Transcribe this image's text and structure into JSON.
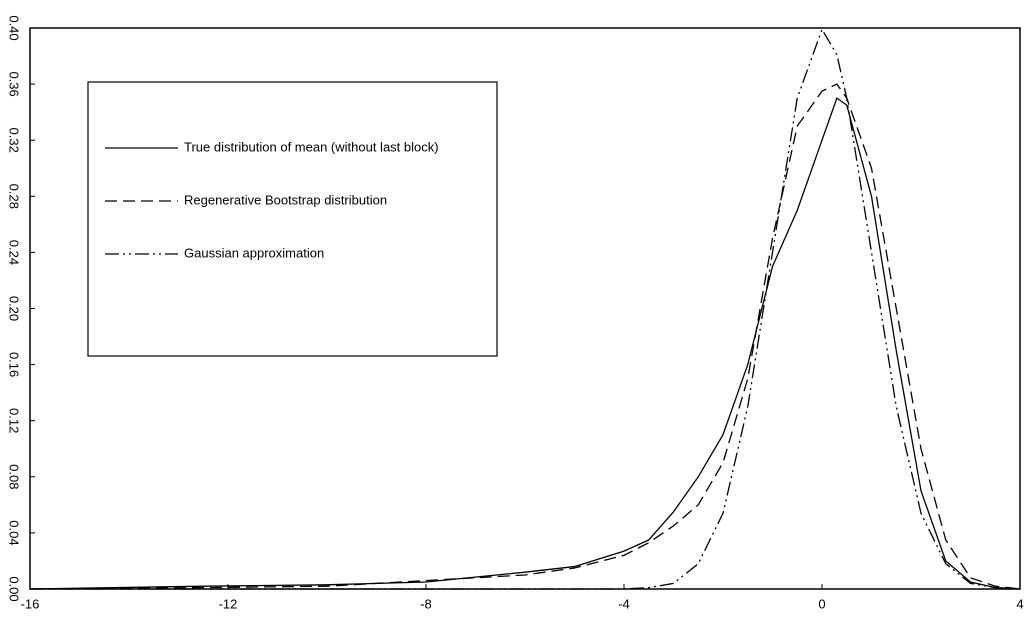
{
  "chart_data": {
    "type": "line",
    "x": [
      -16,
      -12.5,
      -10,
      -8,
      -6,
      -5,
      -4,
      -3.5,
      -3,
      -2.5,
      -2,
      -1.5,
      -1,
      -0.5,
      0,
      0.3,
      0.5,
      1,
      1.5,
      2,
      2.5,
      3,
      3.5,
      4
    ],
    "series": [
      {
        "name": "True distribution of mean (without last block)",
        "color": "#000000",
        "linestyle": "solid",
        "values": [
          0,
          0.002,
          0.003,
          0.005,
          0.012,
          0.016,
          0.027,
          0.035,
          0.055,
          0.08,
          0.11,
          0.16,
          0.23,
          0.27,
          0.32,
          0.35,
          0.345,
          0.28,
          0.17,
          0.07,
          0.02,
          0.005,
          0.001,
          0
        ]
      },
      {
        "name": "Regenerative Bootstrap distribution",
        "color": "#000000",
        "linestyle": "dashed",
        "values": [
          0,
          0.001,
          0.002,
          0.006,
          0.01,
          0.015,
          0.024,
          0.033,
          0.045,
          0.06,
          0.09,
          0.15,
          0.25,
          0.33,
          0.355,
          0.36,
          0.35,
          0.3,
          0.2,
          0.1,
          0.035,
          0.008,
          0.002,
          0
        ]
      },
      {
        "name": "Gaussian approximation",
        "color": "#000000",
        "linestyle": "dashdot",
        "values": [
          0,
          0,
          0,
          0,
          0,
          0,
          0,
          0.001,
          0.004,
          0.018,
          0.054,
          0.13,
          0.24,
          0.35,
          0.399,
          0.381,
          0.35,
          0.24,
          0.13,
          0.054,
          0.018,
          0.004,
          0.001,
          0
        ]
      }
    ],
    "xlim": [
      -16,
      4
    ],
    "xticks": [
      -16,
      -12,
      -8,
      -4,
      0,
      4
    ],
    "ylim": [
      0,
      0.4
    ],
    "yticks": [
      {
        "value": 0,
        "label": "0.00"
      },
      0.04,
      0.08,
      0.12,
      0.16,
      {
        "value": 0.2,
        "label": "0.20"
      },
      0.24,
      0.28,
      0.32,
      0.36,
      {
        "value": 0.4,
        "label": "0.40"
      }
    ],
    "legend": "upper left"
  }
}
